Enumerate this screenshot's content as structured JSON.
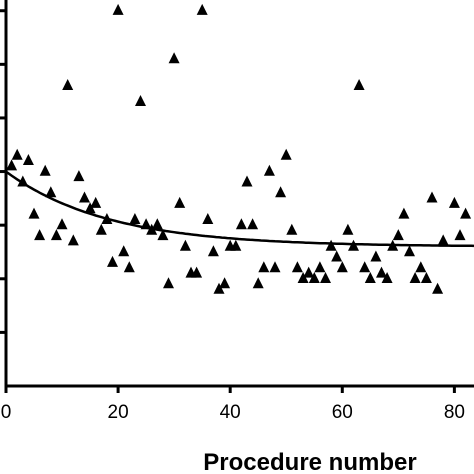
{
  "chart_data": {
    "type": "scatter",
    "title": "",
    "xlabel": "Procedure number",
    "ylabel": "",
    "x_ticks": [
      0,
      20,
      40,
      60,
      80
    ],
    "x_tick_labels": [
      "0",
      "20",
      "40",
      "60",
      "80"
    ],
    "xlim": [
      0,
      83.5
    ],
    "ylim": [
      0,
      7.2
    ],
    "y_ticks": [
      1,
      2,
      3,
      4,
      5,
      6,
      7
    ],
    "grid": false,
    "marker": "filled-triangle",
    "points": [
      [
        1,
        4.1
      ],
      [
        2,
        4.3
      ],
      [
        3,
        3.8
      ],
      [
        4,
        4.2
      ],
      [
        5,
        3.2
      ],
      [
        6,
        2.8
      ],
      [
        7,
        4.0
      ],
      [
        8,
        3.6
      ],
      [
        9,
        2.8
      ],
      [
        10,
        3.0
      ],
      [
        11,
        5.6
      ],
      [
        12,
        2.7
      ],
      [
        13,
        3.9
      ],
      [
        14,
        3.5
      ],
      [
        15,
        3.3
      ],
      [
        16,
        3.4
      ],
      [
        17,
        2.9
      ],
      [
        18,
        3.1
      ],
      [
        19,
        2.3
      ],
      [
        20,
        7.0
      ],
      [
        21,
        2.5
      ],
      [
        22,
        2.2
      ],
      [
        23,
        3.1
      ],
      [
        24,
        5.3
      ],
      [
        25,
        3.0
      ],
      [
        26,
        2.9
      ],
      [
        27,
        3.0
      ],
      [
        28,
        2.8
      ],
      [
        29,
        1.9
      ],
      [
        30,
        6.1
      ],
      [
        31,
        3.4
      ],
      [
        32,
        2.6
      ],
      [
        33,
        2.1
      ],
      [
        34,
        2.1
      ],
      [
        35,
        7.0
      ],
      [
        36,
        3.1
      ],
      [
        37,
        2.5
      ],
      [
        38,
        1.8
      ],
      [
        39,
        1.9
      ],
      [
        40,
        2.6
      ],
      [
        41,
        2.6
      ],
      [
        42,
        3.0
      ],
      [
        43,
        3.8
      ],
      [
        44,
        3.0
      ],
      [
        45,
        1.9
      ],
      [
        46,
        2.2
      ],
      [
        47,
        4.0
      ],
      [
        48,
        2.2
      ],
      [
        49,
        3.6
      ],
      [
        50,
        4.3
      ],
      [
        51,
        2.9
      ],
      [
        52,
        2.2
      ],
      [
        53,
        2.0
      ],
      [
        54,
        2.1
      ],
      [
        55,
        2.0
      ],
      [
        56,
        2.2
      ],
      [
        57,
        2.0
      ],
      [
        58,
        2.6
      ],
      [
        59,
        2.4
      ],
      [
        60,
        2.2
      ],
      [
        61,
        2.9
      ],
      [
        62,
        2.6
      ],
      [
        63,
        5.6
      ],
      [
        64,
        2.2
      ],
      [
        65,
        2.0
      ],
      [
        66,
        2.4
      ],
      [
        67,
        2.1
      ],
      [
        68,
        2.0
      ],
      [
        69,
        2.6
      ],
      [
        70,
        2.8
      ],
      [
        71,
        3.2
      ],
      [
        72,
        2.5
      ],
      [
        73,
        2.0
      ],
      [
        74,
        2.2
      ],
      [
        75,
        2.0
      ],
      [
        76,
        3.5
      ],
      [
        77,
        1.8
      ],
      [
        78,
        2.7
      ],
      [
        80,
        3.4
      ],
      [
        81,
        2.8
      ],
      [
        82,
        3.2
      ]
    ],
    "fit_curve": {
      "type": "exponential-decay",
      "description_values": {
        "y0": 4.0,
        "plateau": 2.6,
        "rate": 0.055
      }
    }
  }
}
